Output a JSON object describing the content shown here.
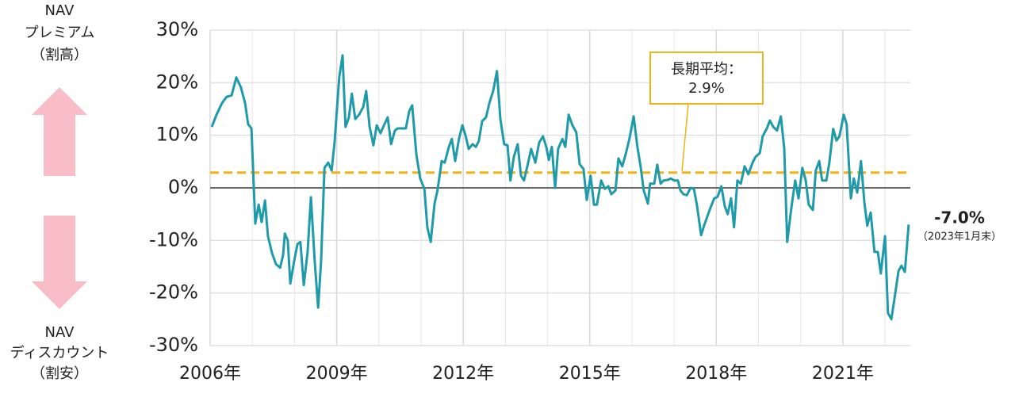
{
  "chart_data": {
    "type": "line",
    "side_labels": {
      "top": [
        "NAV",
        "プレミアム",
        "（割高）"
      ],
      "bottom": [
        "NAV",
        "ディスカウント",
        "（割安）"
      ]
    },
    "ylim": [
      -30,
      30
    ],
    "yticks": [
      {
        "value": 30,
        "label": "30%"
      },
      {
        "value": 20,
        "label": "20%"
      },
      {
        "value": 10,
        "label": "10%"
      },
      {
        "value": 0,
        "label": "0%"
      },
      {
        "value": -10,
        "label": "-10%"
      },
      {
        "value": -20,
        "label": "-20%"
      },
      {
        "value": -30,
        "label": "-30%"
      }
    ],
    "xlim": [
      2006,
      2022.6
    ],
    "xticks": [
      {
        "value": 2006,
        "label": "2006年"
      },
      {
        "value": 2009,
        "label": "2009年"
      },
      {
        "value": 2012,
        "label": "2012年"
      },
      {
        "value": 2015,
        "label": "2015年"
      },
      {
        "value": 2018,
        "label": "2018年"
      },
      {
        "value": 2021,
        "label": "2021年"
      }
    ],
    "xminorticks": [
      2007,
      2008,
      2010,
      2011,
      2013,
      2014,
      2016,
      2017,
      2019,
      2020,
      2022
    ],
    "grid": true,
    "reference_line": {
      "value": 2.9,
      "title": "長期平均：",
      "label": "2.9%",
      "color": "#f0b419"
    },
    "end_label": {
      "value": -7.0,
      "label": "-7.0%",
      "note": "（2023年1月末）"
    },
    "x": [
      2006.04,
      2006.15,
      2006.28,
      2006.39,
      2006.51,
      2006.62,
      2006.73,
      2006.83,
      2006.9,
      2006.98,
      2007.07,
      2007.15,
      2007.22,
      2007.3,
      2007.37,
      2007.47,
      2007.56,
      2007.66,
      2007.73,
      2007.77,
      2007.84,
      2007.9,
      2007.99,
      2008.07,
      2008.14,
      2008.22,
      2008.31,
      2008.39,
      2008.48,
      2008.56,
      2008.63,
      2008.71,
      2008.8,
      2008.88,
      2008.95,
      2009.06,
      2009.14,
      2009.21,
      2009.29,
      2009.36,
      2009.44,
      2009.53,
      2009.63,
      2009.7,
      2009.78,
      2009.87,
      2009.95,
      2010.04,
      2010.12,
      2010.21,
      2010.29,
      2010.38,
      2010.45,
      2010.55,
      2010.64,
      2010.72,
      2010.79,
      2010.89,
      2010.98,
      2011.08,
      2011.15,
      2011.23,
      2011.32,
      2011.39,
      2011.49,
      2011.56,
      2011.66,
      2011.73,
      2011.81,
      2011.9,
      2011.98,
      2012.05,
      2012.13,
      2012.22,
      2012.3,
      2012.37,
      2012.45,
      2012.54,
      2012.62,
      2012.71,
      2012.8,
      2012.88,
      2012.97,
      2013.05,
      2013.12,
      2013.2,
      2013.29,
      2013.37,
      2013.44,
      2013.52,
      2013.61,
      2013.71,
      2013.8,
      2013.89,
      2013.97,
      2014.03,
      2014.1,
      2014.18,
      2014.25,
      2014.35,
      2014.42,
      2014.5,
      2014.59,
      2014.68,
      2014.76,
      2014.85,
      2014.93,
      2015.02,
      2015.1,
      2015.17,
      2015.27,
      2015.36,
      2015.44,
      2015.51,
      2015.61,
      2015.68,
      2015.77,
      2015.85,
      2015.94,
      2016.04,
      2016.13,
      2016.21,
      2016.28,
      2016.38,
      2016.43,
      2016.53,
      2016.6,
      2016.68,
      2016.75,
      2016.85,
      2016.92,
      2017.0,
      2017.09,
      2017.15,
      2017.22,
      2017.3,
      2017.39,
      2017.47,
      2017.54,
      2017.64,
      2017.71,
      2017.79,
      2017.86,
      2017.95,
      2018.03,
      2018.12,
      2018.2,
      2018.27,
      2018.35,
      2018.42,
      2018.5,
      2018.58,
      2018.67,
      2018.76,
      2018.86,
      2018.93,
      2019.03,
      2019.1,
      2019.2,
      2019.27,
      2019.35,
      2019.44,
      2019.53,
      2019.61,
      2019.68,
      2019.78,
      2019.87,
      2019.95,
      2020.04,
      2020.12,
      2020.19,
      2020.29,
      2020.36,
      2020.44,
      2020.51,
      2020.61,
      2020.68,
      2020.77,
      2020.85,
      2020.92,
      2021.02,
      2021.09,
      2021.19,
      2021.26,
      2021.34,
      2021.43,
      2021.51,
      2021.58,
      2021.66,
      2021.75,
      2021.83,
      2021.9,
      2022.0,
      2022.07,
      2022.15,
      2022.22,
      2022.32,
      2022.39,
      2022.47,
      2022.56
    ],
    "series": [
      {
        "color": "#1e9aa9",
        "values": [
          11.6,
          13.9,
          16.1,
          17.3,
          17.6,
          21.0,
          19.1,
          16.1,
          12.1,
          11.3,
          -6.8,
          -3.2,
          -6.5,
          -2.4,
          -9.2,
          -12.5,
          -14.5,
          -15.2,
          -12.8,
          -8.7,
          -10.0,
          -18.2,
          -14.0,
          -10.7,
          -10.3,
          -18.5,
          -12.2,
          -1.8,
          -14.0,
          -22.8,
          -14.0,
          3.8,
          4.8,
          3.3,
          8.6,
          21.0,
          25.2,
          11.6,
          13.4,
          17.9,
          13.1,
          13.9,
          15.4,
          18.4,
          11.6,
          8.1,
          11.9,
          10.4,
          11.9,
          13.4,
          8.3,
          10.9,
          11.3,
          11.3,
          11.3,
          14.6,
          15.7,
          6.3,
          1.8,
          -0.2,
          -7.5,
          -10.3,
          -3.0,
          -0.5,
          5.1,
          4.8,
          7.8,
          9.3,
          5.1,
          9.3,
          11.9,
          10.1,
          7.4,
          8.3,
          7.8,
          8.9,
          12.7,
          13.4,
          16.1,
          18.4,
          22.2,
          13.1,
          8.3,
          8.1,
          1.4,
          5.9,
          8.3,
          2.3,
          1.4,
          4.1,
          7.4,
          4.8,
          8.6,
          9.8,
          7.8,
          5.3,
          7.8,
          0.0,
          7.4,
          9.3,
          7.8,
          13.9,
          11.9,
          10.6,
          4.5,
          3.6,
          -2.3,
          2.3,
          -3.2,
          -3.2,
          1.4,
          -0.2,
          0.3,
          -1.2,
          -0.5,
          5.6,
          4.1,
          6.3,
          9.3,
          13.6,
          7.8,
          3.8,
          -0.5,
          -3.0,
          0.8,
          0.8,
          4.4,
          0.8,
          1.4,
          1.5,
          1.8,
          1.4,
          1.4,
          -0.5,
          -1.2,
          -1.4,
          0.0,
          -0.2,
          -3.2,
          -9.0,
          -7.2,
          -5.4,
          -3.8,
          -2.0,
          -1.7,
          0.3,
          -3.5,
          -5.0,
          -2.0,
          -7.5,
          1.4,
          0.8,
          4.1,
          2.6,
          4.8,
          5.9,
          6.6,
          9.8,
          11.3,
          12.8,
          11.6,
          10.9,
          13.6,
          7.5,
          -10.3,
          -3.8,
          1.4,
          -2.0,
          3.8,
          1.4,
          -3.2,
          -4.2,
          3.3,
          5.1,
          1.4,
          1.4,
          4.8,
          11.2,
          9.0,
          9.8,
          13.9,
          12.1,
          -2.0,
          1.8,
          -0.9,
          5.1,
          -2.7,
          -7.2,
          -4.7,
          -12.2,
          -12.2,
          -16.3,
          -9.2,
          -23.8,
          -25.0,
          -21.3,
          -15.8,
          -14.8,
          -16.0,
          -7.0
        ]
      }
    ]
  }
}
